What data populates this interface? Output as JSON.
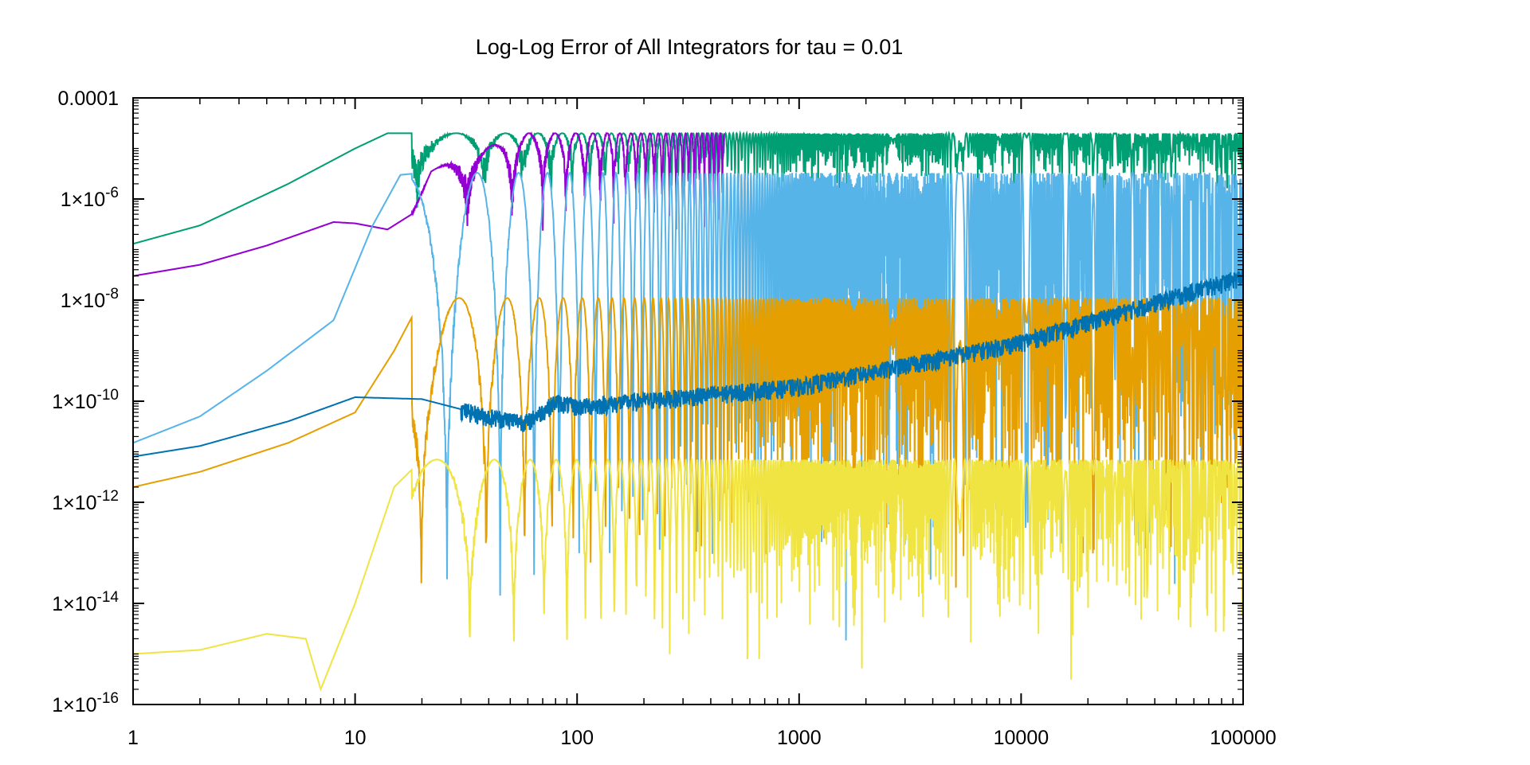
{
  "chart_data": {
    "type": "line",
    "title": "Log-Log Error of All Integrators for tau = 0.01",
    "xlabel": "",
    "ylabel": "",
    "x_scale": "log",
    "y_scale": "log",
    "xlim": [
      1,
      100000
    ],
    "ylim": [
      1e-16,
      0.0001
    ],
    "grid": false,
    "legend": "none",
    "x_ticks": [
      {
        "value": 1,
        "label": "1"
      },
      {
        "value": 10,
        "label": "10"
      },
      {
        "value": 100,
        "label": "100"
      },
      {
        "value": 1000,
        "label": "1000"
      },
      {
        "value": 10000,
        "label": "10000"
      },
      {
        "value": 100000,
        "label": "100000"
      }
    ],
    "y_ticks": [
      {
        "value": 0.0001,
        "base": "0.0001",
        "exp": ""
      },
      {
        "value": 1e-06,
        "base": "1×10",
        "exp": "-6"
      },
      {
        "value": 1e-08,
        "base": "1×10",
        "exp": "-8"
      },
      {
        "value": 1e-10,
        "base": "1×10",
        "exp": "-10"
      },
      {
        "value": 1e-12,
        "base": "1×10",
        "exp": "-12"
      },
      {
        "value": 1e-14,
        "base": "1×10",
        "exp": "-14"
      },
      {
        "value": 1e-16,
        "base": "1×10",
        "exp": "-16"
      }
    ],
    "series": [
      {
        "color": "#009e73",
        "shape": "oscillating",
        "envelope_start": 1.3e-07,
        "env_x": [
          1,
          2,
          5,
          10,
          14,
          100000
        ],
        "env_y": [
          1.3e-07,
          3e-07,
          2e-06,
          1e-05,
          2e-05,
          2e-05
        ],
        "floor_min": 3e-07,
        "x_end": 100000
      },
      {
        "color": "#9400d3",
        "shape": "oscillating",
        "env_x": [
          1,
          2,
          4,
          8,
          10,
          14,
          18,
          22,
          27,
          60,
          460
        ],
        "env_y": [
          3e-08,
          5e-08,
          1.2e-07,
          3.5e-07,
          3.3e-07,
          2.5e-07,
          5e-07,
          3.5e-06,
          6e-06,
          2e-05,
          2e-05
        ],
        "floor_min": 1e-07,
        "x_end": 460
      },
      {
        "color": "#56b4e9",
        "shape": "oscillating",
        "env_x": [
          1,
          2,
          4,
          8,
          12,
          16,
          20,
          100000
        ],
        "env_y": [
          1.5e-11,
          5e-11,
          4e-10,
          4e-09,
          3e-07,
          3e-06,
          3.3e-06,
          3.3e-06
        ],
        "floor_min": 1e-15,
        "x_end": 100000
      },
      {
        "color": "#e69f00",
        "shape": "oscillating",
        "env_x": [
          1,
          2,
          5,
          10,
          15,
          20,
          100000
        ],
        "env_y": [
          2e-12,
          4e-12,
          1.5e-11,
          6e-11,
          1e-09,
          1.1e-08,
          1.1e-08
        ],
        "floor_min": 3e-15,
        "x_end": 100000
      },
      {
        "color": "#f0e442",
        "shape": "oscillating",
        "env_x": [
          1,
          2,
          4,
          6,
          7,
          10,
          15,
          20,
          100000
        ],
        "env_y": [
          1e-15,
          1.2e-15,
          2.5e-15,
          2e-15,
          2e-16,
          1e-14,
          2e-12,
          7e-12,
          7e-12
        ],
        "floor_min": 1.5e-16,
        "x_end": 100000
      },
      {
        "color": "#0072b2",
        "shape": "growing",
        "env_x": [
          1,
          2,
          5,
          10,
          20,
          40,
          60,
          80,
          100,
          1000,
          10000,
          100000
        ],
        "env_y": [
          8e-12,
          1.3e-11,
          4e-11,
          1.2e-10,
          1.1e-10,
          5e-11,
          4e-11,
          1e-10,
          8e-11,
          2e-10,
          1.5e-09,
          3e-08
        ],
        "floor_min": 1e-11,
        "x_end": 100000
      }
    ]
  }
}
